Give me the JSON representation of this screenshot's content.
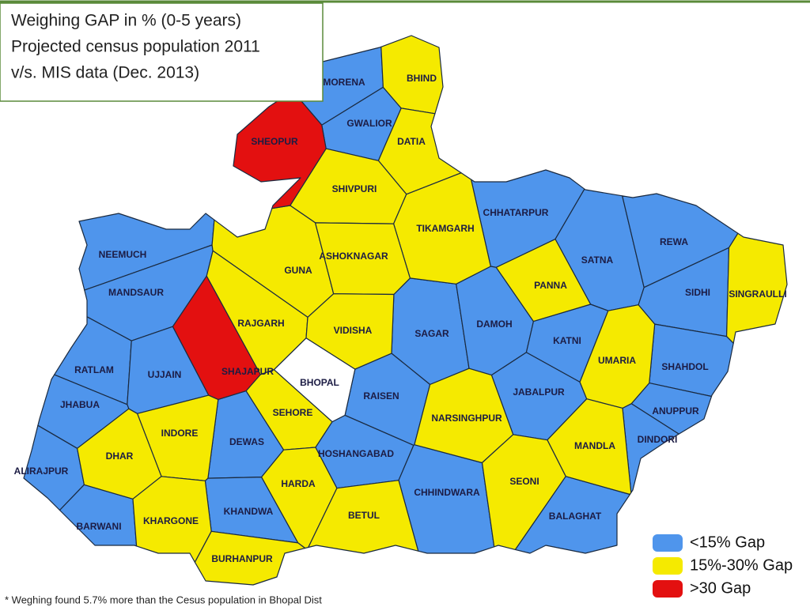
{
  "title": [
    "Weighing GAP in % (0-5 years)",
    "Projected census population 2011",
    "v/s. MIS data (Dec. 2013)"
  ],
  "legend": [
    {
      "label": "<15% Gap",
      "color": "#4f95ec",
      "districts": [
        "MORENA",
        "GWALIOR",
        "CHHATARPUR",
        "NEEMUCH",
        "SATNA",
        "REWA",
        "SIDHI",
        "MANDSAUR",
        "SAGAR",
        "DAMOH",
        "KATNI",
        "SHAHDOL",
        "RATLAM",
        "UJJAIN",
        "RAISEN",
        "JABALPUR",
        "ANUPPUR",
        "JHABUA",
        "DINDORI",
        "DEWAS",
        "HOSHANGABAD",
        "ALIRAJPUR",
        "CHHINDWARA",
        "KHANDWA",
        "BALAGHAT",
        "BARWANI"
      ]
    },
    {
      "label": "15%-30% Gap",
      "color": "#f5ea00",
      "districts": [
        "BHIND",
        "DATIA",
        "SHIVPURI",
        "TIKAMGARH",
        "GUNA",
        "ASHOKNAGAR",
        "PANNA",
        "SINGRAULLI",
        "RAJGARH",
        "VIDISHA",
        "UMARIA",
        "SEHORE",
        "NARSINGHPUR",
        "INDORE",
        "DHAR",
        "MANDLA",
        "HARDA",
        "SEONI",
        "BETUL",
        "KHARGONE",
        "BURHANPUR"
      ]
    },
    {
      "label": ">30 Gap",
      "color": "#e31010",
      "districts": [
        "SHEOPUR",
        "SHAJAPUR"
      ]
    }
  ],
  "unclassified": {
    "color": "#ffffff",
    "districts": [
      "BHOPAL"
    ]
  },
  "footnote": "* Weghing found 5.7% more than the Cesus population in Bhopal Dist"
}
